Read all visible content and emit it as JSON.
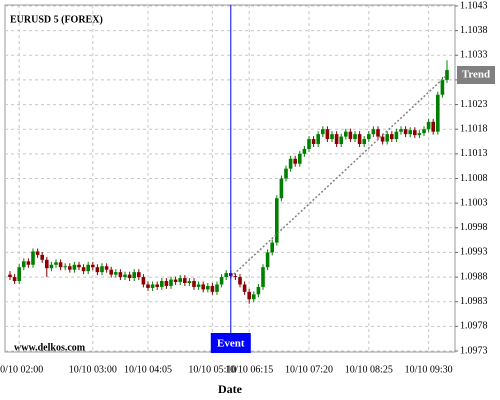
{
  "chart_data": {
    "type": "candlestick",
    "title": "EURUSD 5 (FOREX)",
    "x_label": "Date",
    "watermark": "www.delkos.com",
    "categories": [
      null,
      null,
      "10/10 02:00",
      null,
      null,
      null,
      null,
      null,
      null,
      null,
      null,
      null,
      null,
      null,
      null,
      null,
      null,
      null,
      "10/10 03:00",
      null,
      null,
      null,
      null,
      null,
      null,
      null,
      null,
      null,
      null,
      null,
      "10/10 04:05",
      null,
      null,
      null,
      null,
      null,
      null,
      null,
      null,
      null,
      null,
      null,
      null,
      null,
      "10/10 05:10",
      null,
      null,
      null,
      null,
      null,
      null,
      null,
      "10/10 06:15",
      null,
      null,
      null,
      null,
      null,
      null,
      null,
      null,
      null,
      null,
      null,
      null,
      "10/10 07:20",
      null,
      null,
      null,
      null,
      null,
      null,
      null,
      null,
      null,
      null,
      null,
      null,
      "10/10 08:25",
      null,
      null,
      null,
      null,
      null,
      null,
      null,
      null,
      null,
      null,
      null,
      null,
      "10/10 09:30",
      null,
      null,
      null,
      null
    ],
    "open": [
      1.09885,
      1.0988,
      1.09872,
      1.099,
      1.09912,
      1.09905,
      1.09932,
      1.09925,
      1.09915,
      1.09898,
      1.09905,
      1.0991,
      1.099,
      1.09902,
      1.09895,
      1.09905,
      1.099,
      1.09892,
      1.09905,
      1.099,
      1.0989,
      1.09902,
      1.09895,
      1.09885,
      1.0989,
      1.0988,
      1.09885,
      1.09878,
      1.0989,
      1.0988,
      1.09865,
      1.09858,
      1.09865,
      1.0986,
      1.09872,
      1.09862,
      1.09875,
      1.0987,
      1.09878,
      1.09868,
      1.09872,
      1.0986,
      1.09865,
      1.09855,
      1.09862,
      1.0985,
      1.09865,
      1.0988,
      1.09888,
      1.09882,
      1.0988,
      1.09865,
      1.0985,
      1.09835,
      1.09845,
      1.0986,
      1.099,
      1.0993,
      1.0995,
      1.1004,
      1.1008,
      1.101,
      1.1012,
      1.1011,
      1.1013,
      1.1014,
      1.1016,
      1.1015,
      1.1017,
      1.1018,
      1.1016,
      1.1017,
      1.1015,
      1.10165,
      1.10175,
      1.1016,
      1.1017,
      1.1015,
      1.1016,
      1.1017,
      1.1018,
      1.10165,
      1.10155,
      1.1017,
      1.1016,
      1.10175,
      1.1018,
      1.1017,
      1.10178,
      1.10168,
      1.10172,
      1.1018,
      1.10195,
      1.10175,
      1.1025,
      1.1028
    ],
    "high": [
      1.09892,
      1.09886,
      1.09906,
      1.09918,
      1.09918,
      1.09938,
      1.09938,
      1.09931,
      1.09921,
      1.09911,
      1.09916,
      1.09916,
      1.09908,
      1.09908,
      1.09911,
      1.09911,
      1.09906,
      1.09911,
      1.09911,
      1.09906,
      1.09908,
      1.09908,
      1.09901,
      1.09896,
      1.09896,
      1.09891,
      1.09891,
      1.09896,
      1.09896,
      1.09886,
      1.09871,
      1.09871,
      1.09871,
      1.09878,
      1.09878,
      1.09881,
      1.09881,
      1.09884,
      1.09884,
      1.09878,
      1.09878,
      1.09871,
      1.09871,
      1.09868,
      1.09868,
      1.09871,
      1.09886,
      1.09894,
      1.09894,
      1.09888,
      1.09886,
      1.09871,
      1.09856,
      1.09851,
      1.09866,
      1.09906,
      1.09936,
      1.09956,
      1.10046,
      1.10086,
      1.10106,
      1.10126,
      1.10126,
      1.10136,
      1.10146,
      1.10166,
      1.10166,
      1.10176,
      1.10186,
      1.10186,
      1.10176,
      1.10176,
      1.10171,
      1.10181,
      1.10181,
      1.10176,
      1.10176,
      1.10166,
      1.10176,
      1.10186,
      1.10186,
      1.10171,
      1.10176,
      1.10176,
      1.10181,
      1.10186,
      1.10186,
      1.10184,
      1.10184,
      1.10178,
      1.10186,
      1.10201,
      1.10201,
      1.10256,
      1.10286,
      1.1032
    ],
    "low": [
      1.09874,
      1.09866,
      1.09866,
      1.09894,
      1.09899,
      1.09899,
      1.09919,
      1.09909,
      1.0988,
      1.09892,
      1.09899,
      1.09894,
      1.09894,
      1.09889,
      1.09889,
      1.09894,
      1.09886,
      1.09886,
      1.09894,
      1.09884,
      1.09884,
      1.09889,
      1.09879,
      1.09879,
      1.09874,
      1.09874,
      1.09872,
      1.09872,
      1.09874,
      1.09859,
      1.09852,
      1.09852,
      1.09854,
      1.09854,
      1.09856,
      1.09856,
      1.09864,
      1.09864,
      1.09862,
      1.09862,
      1.09854,
      1.09854,
      1.09849,
      1.09849,
      1.09844,
      1.09844,
      1.09859,
      1.09874,
      1.09876,
      1.09874,
      1.09859,
      1.09844,
      1.09826,
      1.09829,
      1.09839,
      1.09854,
      1.09894,
      1.09924,
      1.09944,
      1.10034,
      1.10074,
      1.10094,
      1.10104,
      1.10104,
      1.10124,
      1.10134,
      1.10144,
      1.10144,
      1.10164,
      1.10154,
      1.10154,
      1.10144,
      1.10144,
      1.10159,
      1.10154,
      1.10154,
      1.10144,
      1.10144,
      1.10154,
      1.10164,
      1.10159,
      1.10149,
      1.10149,
      1.10154,
      1.10154,
      1.10169,
      1.10164,
      1.10164,
      1.10162,
      1.10162,
      1.10166,
      1.10174,
      1.10169,
      1.10169,
      1.10244,
      1.10274
    ],
    "close": [
      1.0988,
      1.09872,
      1.099,
      1.09912,
      1.09905,
      1.09932,
      1.09925,
      1.09915,
      1.09898,
      1.09905,
      1.0991,
      1.099,
      1.09902,
      1.09895,
      1.09905,
      1.099,
      1.09892,
      1.09905,
      1.099,
      1.0989,
      1.09902,
      1.09895,
      1.09885,
      1.0989,
      1.0988,
      1.09885,
      1.09878,
      1.0989,
      1.0988,
      1.09865,
      1.09858,
      1.09865,
      1.0986,
      1.09872,
      1.09862,
      1.09875,
      1.0987,
      1.09878,
      1.09868,
      1.09872,
      1.0986,
      1.09865,
      1.09855,
      1.09862,
      1.0985,
      1.09865,
      1.0988,
      1.09888,
      1.09882,
      1.0988,
      1.09865,
      1.0985,
      1.09835,
      1.09845,
      1.0986,
      1.099,
      1.0993,
      1.0995,
      1.1004,
      1.1008,
      1.101,
      1.1012,
      1.1011,
      1.1013,
      1.1014,
      1.1016,
      1.1015,
      1.1017,
      1.1018,
      1.1016,
      1.1017,
      1.1015,
      1.10165,
      1.10175,
      1.1016,
      1.1017,
      1.1015,
      1.1016,
      1.1017,
      1.1018,
      1.10165,
      1.10155,
      1.1017,
      1.1016,
      1.10175,
      1.1018,
      1.1017,
      1.10178,
      1.10168,
      1.10172,
      1.1018,
      1.10195,
      1.10175,
      1.1025,
      1.1028,
      1.103
    ],
    "up_color": "#008000",
    "down_color": "#8b0000",
    "ylim": [
      1.09728,
      1.10432
    ],
    "yticks": [
      1.0973,
      1.0978,
      1.0983,
      1.0988,
      1.0993,
      1.0998,
      1.1003,
      1.1008,
      1.1013,
      1.1018,
      1.1023,
      1.1028,
      1.1033,
      1.1038,
      1.1043
    ],
    "grid": true,
    "event": {
      "label": "Event",
      "at": 48,
      "color": "#0000ff"
    },
    "trend": {
      "label": "Trend",
      "start": [
        48,
        1.0988
      ],
      "end": [
        95,
        1.1029
      ],
      "color": "#808080"
    }
  }
}
